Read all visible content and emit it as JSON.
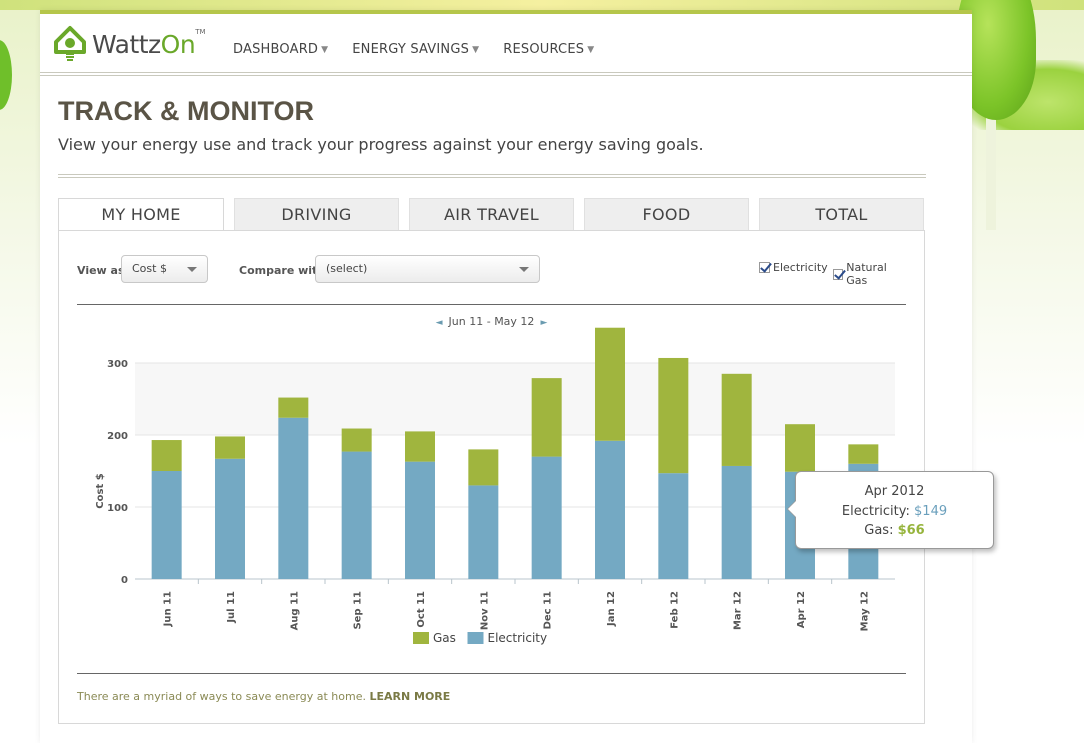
{
  "header": {
    "logo_name": "WattzOn",
    "logo_prefix": "Wattz",
    "logo_suffix": "On",
    "logo_tm": "TM",
    "nav": [
      {
        "label": "DASHBOARD"
      },
      {
        "label": "ENERGY SAVINGS"
      },
      {
        "label": "RESOURCES"
      }
    ]
  },
  "page": {
    "title": "TRACK & MONITOR",
    "subtitle": "View your energy use and track your progress against your energy saving goals."
  },
  "tabs": [
    {
      "label": "MY HOME",
      "active": true
    },
    {
      "label": "DRIVING",
      "active": false
    },
    {
      "label": "AIR TRAVEL",
      "active": false
    },
    {
      "label": "FOOD",
      "active": false
    },
    {
      "label": "TOTAL",
      "active": false
    }
  ],
  "controls": {
    "view_as_label": "View as",
    "view_as_value": "Cost $",
    "compare_label": "Compare with",
    "compare_value": "(select)",
    "electricity_label": "Electricity",
    "electricity_checked": true,
    "gas_label": "Natural Gas",
    "gas_checked": true
  },
  "range": {
    "label": "Jun 11 - May 12",
    "prev": "◄",
    "next": "►"
  },
  "chart_data": {
    "type": "bar",
    "stacked": true,
    "ylabel": "Cost $",
    "ylim": [
      0,
      350
    ],
    "yticks": [
      0,
      100,
      200,
      300
    ],
    "categories": [
      "Jun 11",
      "Jul 11",
      "Aug 11",
      "Sep 11",
      "Oct 11",
      "Nov 11",
      "Dec 11",
      "Jan 12",
      "Feb 12",
      "Mar 12",
      "Apr 12",
      "May 12"
    ],
    "series": [
      {
        "name": "Electricity",
        "color": "#74a9c3",
        "values": [
          150,
          167,
          224,
          177,
          163,
          130,
          170,
          192,
          147,
          157,
          149,
          160
        ]
      },
      {
        "name": "Gas",
        "color": "#a0b53e",
        "values": [
          43,
          31,
          28,
          32,
          42,
          50,
          109,
          157,
          160,
          128,
          66,
          27
        ]
      }
    ],
    "legend": [
      {
        "name": "Gas",
        "color": "#a0b53e"
      },
      {
        "name": "Electricity",
        "color": "#74a9c3"
      }
    ],
    "legend_position": "bottom",
    "grid": true
  },
  "tooltip": {
    "title": "Apr 2012",
    "electricity_label": "Electricity:",
    "electricity_value": "$149",
    "gas_label": "Gas:",
    "gas_value": "$66"
  },
  "footer": {
    "text": "There are a myriad of ways to save energy at home.",
    "link": "LEARN MORE"
  },
  "colors": {
    "accent_green": "#6aa82a",
    "gas": "#a0b53e",
    "electricity": "#74a9c3",
    "title": "#5a5446"
  }
}
